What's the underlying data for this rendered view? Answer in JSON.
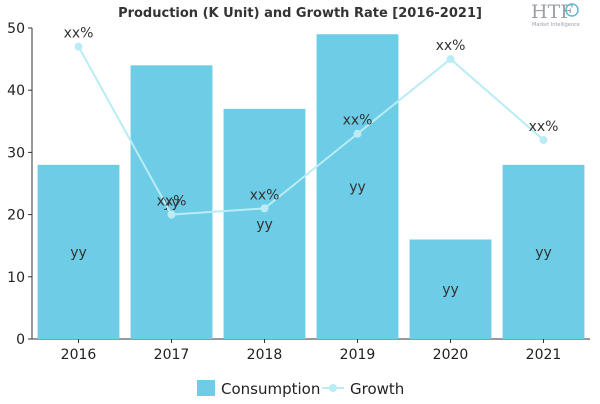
{
  "logo": {
    "brand": "HTF",
    "tagline": "Market Intelligence"
  },
  "legend": {
    "consumption": "Consumption",
    "growth": "Growth"
  },
  "chart_data": {
    "type": "bar",
    "title": "Production (K Unit) and Growth Rate [2016-2021]",
    "categories": [
      "2016",
      "2017",
      "2018",
      "2019",
      "2020",
      "2021"
    ],
    "series": [
      {
        "name": "Consumption",
        "type": "bar",
        "color": "#6dcde6",
        "values": [
          28,
          44,
          37,
          49,
          16,
          28
        ],
        "data_labels": [
          "yy",
          "yy",
          "yy",
          "yy",
          "yy",
          "yy"
        ]
      },
      {
        "name": "Growth",
        "type": "line",
        "color": "#b9ecf5",
        "values": [
          47,
          20,
          21,
          33,
          45,
          32
        ],
        "data_labels": [
          "xx%",
          "xx%",
          "xx%",
          "xx%",
          "xx%",
          "xx%"
        ]
      }
    ],
    "yticks": [
      0,
      10,
      20,
      30,
      40,
      50
    ],
    "ylim": [
      0,
      50
    ],
    "xlabel": "",
    "ylabel": "",
    "grid": false,
    "legend_position": "bottom"
  }
}
